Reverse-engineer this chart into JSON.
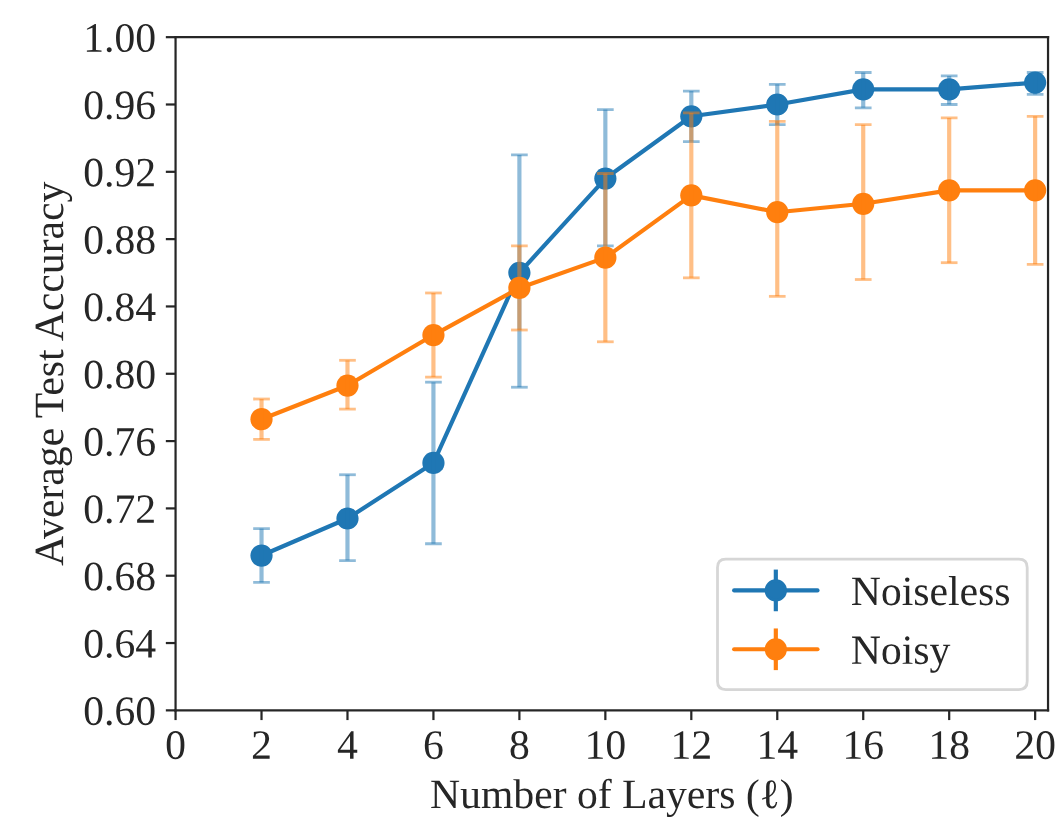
{
  "chart_data": {
    "type": "line",
    "xlabel": "Number of Layers (ℓ)",
    "ylabel": "Average Test Accuracy",
    "x": [
      2,
      4,
      6,
      8,
      10,
      12,
      14,
      16,
      18,
      20
    ],
    "xlim": [
      0,
      20.3
    ],
    "xticks": [
      0,
      2,
      4,
      6,
      8,
      10,
      12,
      14,
      16,
      18,
      20
    ],
    "ylim": [
      0.6,
      1.0
    ],
    "yticks": [
      {
        "value": 0.6,
        "label": "0.60"
      },
      {
        "value": 0.64,
        "label": "0.64"
      },
      {
        "value": 0.68,
        "label": "0.68"
      },
      {
        "value": 0.72,
        "label": "0.72"
      },
      {
        "value": 0.76,
        "label": "0.76"
      },
      {
        "value": 0.8,
        "label": "0.80"
      },
      {
        "value": 0.84,
        "label": "0.84"
      },
      {
        "value": 0.88,
        "label": "0.88"
      },
      {
        "value": 0.92,
        "label": "0.92"
      },
      {
        "value": 0.96,
        "label": "0.96"
      },
      {
        "value": 1.0,
        "label": "1.00"
      }
    ],
    "marker": "circle",
    "legend": "bottom right",
    "grid": false,
    "series": [
      {
        "name": "Noiseless",
        "color": "#1f77b4",
        "values": [
          0.692,
          0.714,
          0.747,
          0.86,
          0.916,
          0.953,
          0.96,
          0.969,
          0.969,
          0.973
        ],
        "errors": [
          [
            0.676,
            0.708
          ],
          [
            0.689,
            0.74
          ],
          [
            0.699,
            0.795
          ],
          [
            0.792,
            0.93
          ],
          [
            0.876,
            0.957
          ],
          [
            0.938,
            0.968
          ],
          [
            0.948,
            0.972
          ],
          [
            0.958,
            0.979
          ],
          [
            0.96,
            0.977
          ],
          [
            0.966,
            0.979
          ]
        ]
      },
      {
        "name": "Noisy",
        "color": "#ff7f0e",
        "values": [
          0.773,
          0.793,
          0.823,
          0.851,
          0.869,
          0.906,
          0.896,
          0.901,
          0.909,
          0.909
        ],
        "errors": [
          [
            0.761,
            0.785
          ],
          [
            0.779,
            0.808
          ],
          [
            0.798,
            0.848
          ],
          [
            0.826,
            0.876
          ],
          [
            0.819,
            0.919
          ],
          [
            0.857,
            0.955
          ],
          [
            0.846,
            0.95
          ],
          [
            0.856,
            0.948
          ],
          [
            0.866,
            0.952
          ],
          [
            0.865,
            0.953
          ]
        ]
      }
    ]
  }
}
